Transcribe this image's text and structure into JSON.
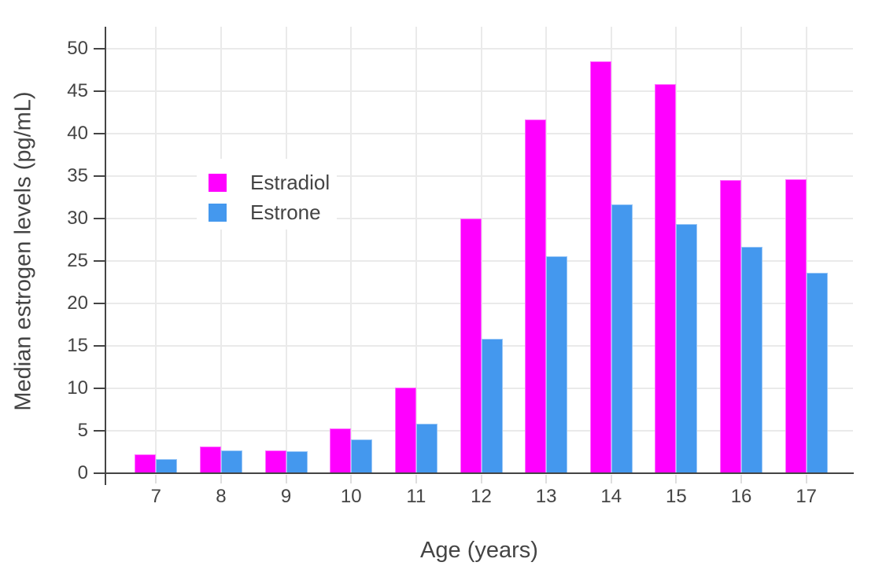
{
  "chart_data": {
    "type": "bar",
    "title": "",
    "xlabel": "Age (years)",
    "ylabel": "Median estrogen levels (pg/mL)",
    "categories": [
      "7",
      "8",
      "9",
      "10",
      "11",
      "12",
      "13",
      "14",
      "15",
      "16",
      "17"
    ],
    "series": [
      {
        "name": "Estradiol",
        "color": "#ff00ff",
        "values": [
          2.2,
          3.1,
          2.7,
          5.3,
          10.1,
          30.0,
          41.6,
          48.5,
          45.8,
          34.5,
          34.6
        ]
      },
      {
        "name": "Estrone",
        "color": "#4498ee",
        "values": [
          1.7,
          2.7,
          2.6,
          4.0,
          5.8,
          15.8,
          25.5,
          31.6,
          29.3,
          26.6,
          23.6
        ]
      }
    ],
    "ylim": [
      0,
      52.5
    ],
    "yticks": [
      0,
      5,
      10,
      15,
      20,
      25,
      30,
      35,
      40,
      45,
      50
    ],
    "grid": true,
    "legend_position": "inside-upper-left",
    "style": {
      "text_color": "#444444",
      "grid_color": "#eaeaea",
      "axis_color": "#444444",
      "background": "#ffffff"
    }
  }
}
